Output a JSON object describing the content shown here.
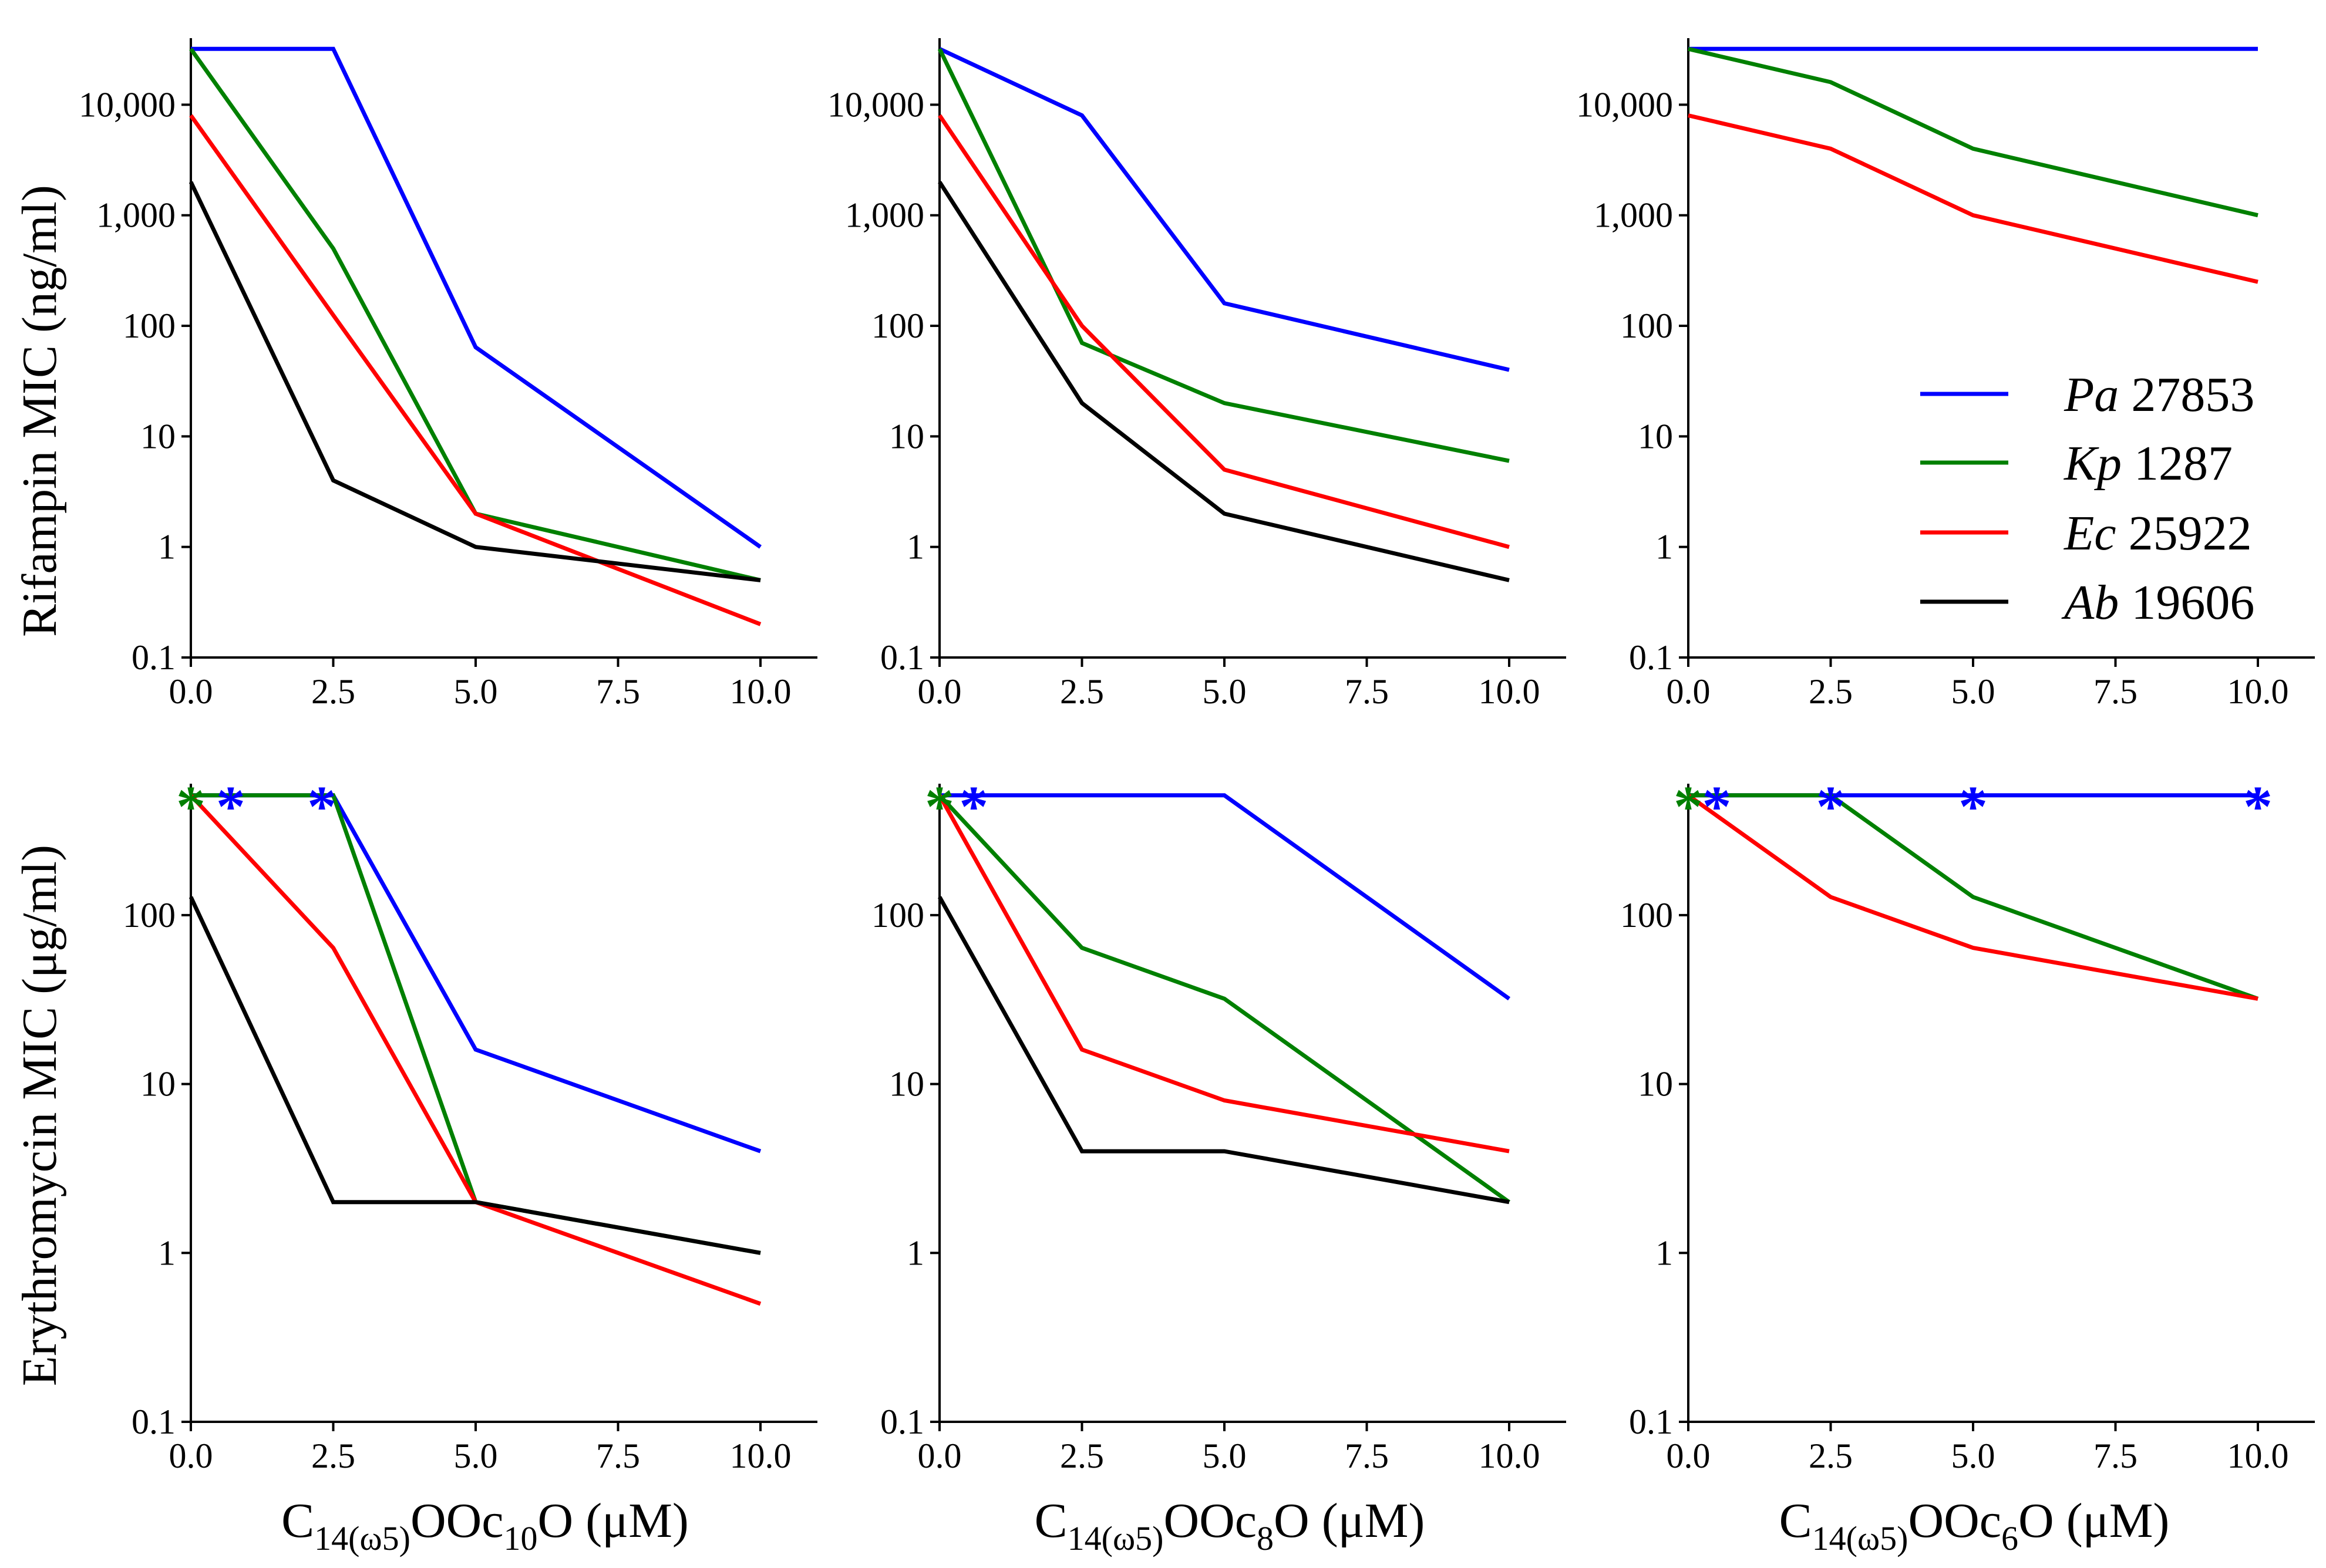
{
  "legend": {
    "entries": [
      {
        "abbr": "Pa",
        "number": "27853",
        "color": "#0000ff"
      },
      {
        "abbr": "Kp",
        "number": "1287",
        "color": "#008000"
      },
      {
        "abbr": "Ec",
        "number": "25922",
        "color": "#ff0000"
      },
      {
        "abbr": "Ab",
        "number": "19606",
        "color": "#000000"
      }
    ]
  },
  "y_titles": {
    "top": "Rifampin MIC (ng/ml)",
    "bottom": "Erythromycin MIC (μg/ml)"
  },
  "x_titles": [
    {
      "base": "C",
      "sub": "14(ω5)",
      "mid": "OOc",
      "sub2": "10",
      "tail": "O (μM)"
    },
    {
      "base": "C",
      "sub": "14(ω5)",
      "mid": "OOc",
      "sub2": "8",
      "tail": "O (μM)"
    },
    {
      "base": "C",
      "sub": "14(ω5)",
      "mid": "OOc",
      "sub2": "6",
      "tail": "O (μM)"
    }
  ],
  "chart_data": [
    {
      "type": "line",
      "id": "rifampin-c10",
      "row": 0,
      "col": 0,
      "yscale": "log",
      "xlabel": "C14(ω5)OOc10O (μM)",
      "ylabel": "Rifampin MIC (ng/ml)",
      "xlim": [
        0,
        11
      ],
      "ylim": [
        0.1,
        40000
      ],
      "xticks": [
        0,
        2.5,
        5,
        7.5,
        10
      ],
      "xtick_labels": [
        "0.0",
        "2.5",
        "5.0",
        "7.5",
        "10.0"
      ],
      "yticks": [
        0.1,
        1,
        10,
        100,
        1000,
        10000
      ],
      "ytick_labels": [
        "0.1",
        "1",
        "10",
        "100",
        "1,000",
        "10,000"
      ],
      "x": [
        0,
        2.5,
        5,
        10
      ],
      "series": [
        {
          "name": "Pa 27853",
          "color": "#0000ff",
          "values": [
            32000,
            32000,
            64,
            1
          ]
        },
        {
          "name": "Kp 1287",
          "color": "#008000",
          "values": [
            32000,
            500,
            2,
            0.5
          ]
        },
        {
          "name": "Ec 25922",
          "color": "#ff0000",
          "values": [
            8000,
            125,
            2,
            0.2
          ]
        },
        {
          "name": "Ab 19606",
          "color": "#000000",
          "values": [
            2000,
            4,
            1,
            0.5
          ]
        }
      ],
      "stars": []
    },
    {
      "type": "line",
      "id": "rifampin-c8",
      "row": 0,
      "col": 1,
      "yscale": "log",
      "xlabel": "C14(ω5)OOc8O (μM)",
      "ylabel": "Rifampin MIC (ng/ml)",
      "xlim": [
        0,
        11
      ],
      "ylim": [
        0.1,
        40000
      ],
      "xticks": [
        0,
        2.5,
        5,
        7.5,
        10
      ],
      "xtick_labels": [
        "0.0",
        "2.5",
        "5.0",
        "7.5",
        "10.0"
      ],
      "yticks": [
        0.1,
        1,
        10,
        100,
        1000,
        10000
      ],
      "ytick_labels": [
        "0.1",
        "1",
        "10",
        "100",
        "1,000",
        "10,000"
      ],
      "x": [
        0,
        2.5,
        5,
        10
      ],
      "series": [
        {
          "name": "Pa 27853",
          "color": "#0000ff",
          "values": [
            32000,
            8000,
            160,
            40
          ]
        },
        {
          "name": "Kp 1287",
          "color": "#008000",
          "values": [
            32000,
            70,
            20,
            6
          ]
        },
        {
          "name": "Ec 25922",
          "color": "#ff0000",
          "values": [
            8000,
            100,
            5,
            1
          ]
        },
        {
          "name": "Ab 19606",
          "color": "#000000",
          "values": [
            2000,
            20,
            2,
            0.5
          ]
        }
      ],
      "stars": []
    },
    {
      "type": "line",
      "id": "rifampin-c6",
      "row": 0,
      "col": 2,
      "yscale": "log",
      "xlabel": "C14(ω5)OOc6O (μM)",
      "ylabel": "Rifampin MIC (ng/ml)",
      "xlim": [
        0,
        11
      ],
      "ylim": [
        0.1,
        40000
      ],
      "xticks": [
        0,
        2.5,
        5,
        7.5,
        10
      ],
      "xtick_labels": [
        "0.0",
        "2.5",
        "5.0",
        "7.5",
        "10.0"
      ],
      "yticks": [
        0.1,
        1,
        10,
        100,
        1000,
        10000
      ],
      "ytick_labels": [
        "0.1",
        "1",
        "10",
        "100",
        "1,000",
        "10,000"
      ],
      "x": [
        0,
        2.5,
        5,
        10
      ],
      "series": [
        {
          "name": "Pa 27853",
          "color": "#0000ff",
          "values": [
            32000,
            32000,
            32000,
            32000
          ]
        },
        {
          "name": "Kp 1287",
          "color": "#008000",
          "values": [
            32000,
            16000,
            4000,
            1000
          ]
        },
        {
          "name": "Ec 25922",
          "color": "#ff0000",
          "values": [
            8000,
            4000,
            1000,
            250
          ]
        }
      ],
      "stars": []
    },
    {
      "type": "line",
      "id": "erythromycin-c10",
      "row": 1,
      "col": 0,
      "yscale": "log",
      "xlabel": "C14(ω5)OOc10O (μM)",
      "ylabel": "Erythromycin MIC (μg/ml)",
      "xlim": [
        0,
        11
      ],
      "ylim": [
        0.1,
        600
      ],
      "xticks": [
        0,
        2.5,
        5,
        7.5,
        10
      ],
      "xtick_labels": [
        "0.0",
        "2.5",
        "5.0",
        "7.5",
        "10.0"
      ],
      "yticks": [
        0.1,
        1,
        10,
        100
      ],
      "ytick_labels": [
        "0.1",
        "1",
        "10",
        "100"
      ],
      "x": [
        0,
        2.5,
        5,
        10
      ],
      "series": [
        {
          "name": "Pa 27853",
          "color": "#0000ff",
          "values": [
            512,
            512,
            16,
            4
          ]
        },
        {
          "name": "Kp 1287",
          "color": "#008000",
          "values": [
            512,
            512,
            2,
            1
          ]
        },
        {
          "name": "Ec 25922",
          "color": "#ff0000",
          "values": [
            512,
            64,
            2,
            0.5
          ]
        },
        {
          "name": "Ab 19606",
          "color": "#000000",
          "values": [
            128,
            2,
            2,
            1
          ]
        }
      ],
      "stars": [
        {
          "text": "*",
          "color": "#008000",
          "x": 0
        },
        {
          "text": "*",
          "color": "#0000ff",
          "x": 0.7
        },
        {
          "text": "*",
          "color": "#0000ff",
          "x": 2.3
        }
      ]
    },
    {
      "type": "line",
      "id": "erythromycin-c8",
      "row": 1,
      "col": 1,
      "yscale": "log",
      "xlabel": "C14(ω5)OOc8O (μM)",
      "ylabel": "Erythromycin MIC (μg/ml)",
      "xlim": [
        0,
        11
      ],
      "ylim": [
        0.1,
        600
      ],
      "xticks": [
        0,
        2.5,
        5,
        7.5,
        10
      ],
      "xtick_labels": [
        "0.0",
        "2.5",
        "5.0",
        "7.5",
        "10.0"
      ],
      "yticks": [
        0.1,
        1,
        10,
        100
      ],
      "ytick_labels": [
        "0.1",
        "1",
        "10",
        "100"
      ],
      "x": [
        0,
        2.5,
        5,
        10
      ],
      "series": [
        {
          "name": "Pa 27853",
          "color": "#0000ff",
          "values": [
            512,
            512,
            512,
            32
          ]
        },
        {
          "name": "Kp 1287",
          "color": "#008000",
          "values": [
            512,
            64,
            32,
            2
          ]
        },
        {
          "name": "Ec 25922",
          "color": "#ff0000",
          "values": [
            512,
            16,
            8,
            4
          ]
        },
        {
          "name": "Ab 19606",
          "color": "#000000",
          "values": [
            128,
            4,
            4,
            2
          ]
        }
      ],
      "stars": [
        {
          "text": "*",
          "color": "#008000",
          "x": 0
        },
        {
          "text": "*",
          "color": "#0000ff",
          "x": 0.6
        }
      ]
    },
    {
      "type": "line",
      "id": "erythromycin-c6",
      "row": 1,
      "col": 2,
      "yscale": "log",
      "xlabel": "C14(ω5)OOc6O (μM)",
      "ylabel": "Erythromycin MIC (μg/ml)",
      "xlim": [
        0,
        11
      ],
      "ylim": [
        0.1,
        600
      ],
      "xticks": [
        0,
        2.5,
        5,
        7.5,
        10
      ],
      "xtick_labels": [
        "0.0",
        "2.5",
        "5.0",
        "7.5",
        "10.0"
      ],
      "yticks": [
        0.1,
        1,
        10,
        100
      ],
      "ytick_labels": [
        "0.1",
        "1",
        "10",
        "100"
      ],
      "x": [
        0,
        2.5,
        5,
        10
      ],
      "series": [
        {
          "name": "Pa 27853",
          "color": "#0000ff",
          "values": [
            512,
            512,
            512,
            512
          ]
        },
        {
          "name": "Kp 1287",
          "color": "#008000",
          "values": [
            512,
            512,
            128,
            32
          ]
        },
        {
          "name": "Ec 25922",
          "color": "#ff0000",
          "values": [
            512,
            128,
            64,
            32
          ]
        }
      ],
      "stars": [
        {
          "text": "*",
          "color": "#008000",
          "x": 0
        },
        {
          "text": "*",
          "color": "#0000ff",
          "x": 0.5
        },
        {
          "text": "*",
          "color": "#0000ff",
          "x": 2.5
        },
        {
          "text": "*",
          "color": "#0000ff",
          "x": 5
        },
        {
          "text": "*",
          "color": "#0000ff",
          "x": 10
        }
      ]
    }
  ]
}
